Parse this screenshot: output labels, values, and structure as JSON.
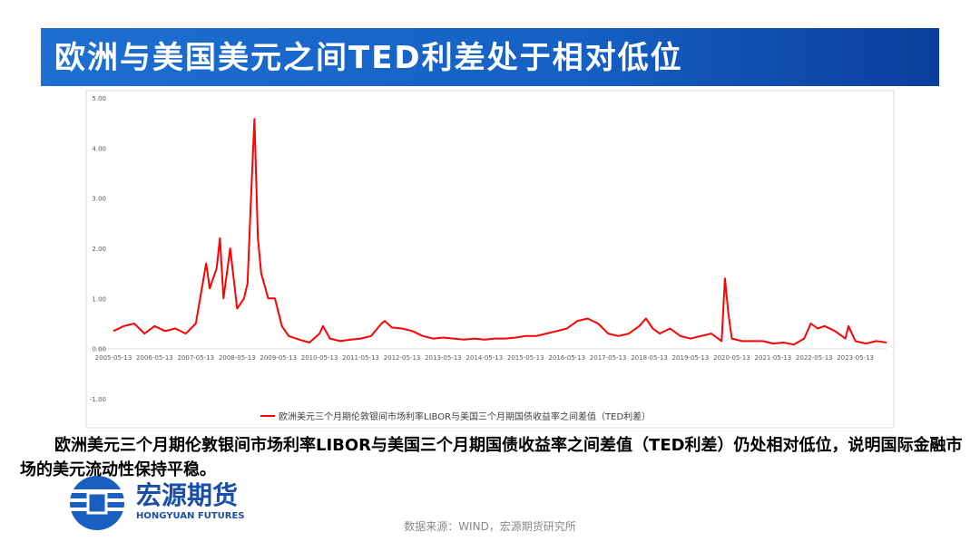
{
  "title": "欧洲与美国美元之间TED利差处于相对低位",
  "chart_data": {
    "type": "line",
    "x": [
      "2005-05-13",
      "2005-08-13",
      "2005-11-13",
      "2006-02-13",
      "2006-05-13",
      "2006-08-13",
      "2006-11-13",
      "2007-02-13",
      "2007-05-13",
      "2007-08-13",
      "2007-09-13",
      "2007-11-13",
      "2007-12-13",
      "2008-01-13",
      "2008-03-13",
      "2008-05-13",
      "2008-07-13",
      "2008-08-13",
      "2008-09-13",
      "2008-10-13",
      "2008-11-13",
      "2008-12-13",
      "2009-02-13",
      "2009-04-13",
      "2009-06-13",
      "2009-08-13",
      "2009-11-13",
      "2010-02-13",
      "2010-05-13",
      "2010-06-13",
      "2010-08-13",
      "2010-11-13",
      "2011-02-13",
      "2011-05-13",
      "2011-08-13",
      "2011-11-13",
      "2011-12-13",
      "2012-02-13",
      "2012-05-13",
      "2012-08-13",
      "2012-11-13",
      "2013-02-13",
      "2013-05-13",
      "2013-08-13",
      "2013-11-13",
      "2014-02-13",
      "2014-05-13",
      "2014-08-13",
      "2014-11-13",
      "2015-02-13",
      "2015-05-13",
      "2015-08-13",
      "2015-11-13",
      "2016-02-13",
      "2016-05-13",
      "2016-08-13",
      "2016-11-13",
      "2017-02-13",
      "2017-05-13",
      "2017-08-13",
      "2017-11-13",
      "2018-02-13",
      "2018-04-13",
      "2018-06-13",
      "2018-08-13",
      "2018-11-13",
      "2019-02-13",
      "2019-05-13",
      "2019-08-13",
      "2019-11-13",
      "2020-02-13",
      "2020-03-13",
      "2020-04-13",
      "2020-05-13",
      "2020-08-13",
      "2020-11-13",
      "2021-02-13",
      "2021-05-13",
      "2021-08-13",
      "2021-11-13",
      "2022-02-13",
      "2022-04-13",
      "2022-06-13",
      "2022-08-13",
      "2022-11-13",
      "2023-02-13",
      "2023-03-13",
      "2023-05-13",
      "2023-08-13",
      "2023-11-13",
      "2024-02-13"
    ],
    "series": [
      {
        "name": "欧洲美元三个月期伦敦银间市场利率LIBOR与美国三个月期国债收益率之间差值（TED利差）",
        "color": "#ff0000",
        "values": [
          0.35,
          0.45,
          0.5,
          0.3,
          0.45,
          0.35,
          0.4,
          0.3,
          0.5,
          1.7,
          1.2,
          1.6,
          2.2,
          1.0,
          2.0,
          0.8,
          1.0,
          1.3,
          3.0,
          4.58,
          2.2,
          1.5,
          1.0,
          1.0,
          0.45,
          0.25,
          0.18,
          0.12,
          0.3,
          0.45,
          0.2,
          0.15,
          0.18,
          0.2,
          0.25,
          0.5,
          0.55,
          0.42,
          0.4,
          0.35,
          0.25,
          0.2,
          0.22,
          0.2,
          0.18,
          0.2,
          0.18,
          0.2,
          0.2,
          0.22,
          0.25,
          0.25,
          0.3,
          0.35,
          0.4,
          0.55,
          0.6,
          0.5,
          0.3,
          0.25,
          0.3,
          0.45,
          0.6,
          0.4,
          0.3,
          0.4,
          0.25,
          0.2,
          0.25,
          0.3,
          0.15,
          1.4,
          0.7,
          0.2,
          0.15,
          0.15,
          0.15,
          0.1,
          0.12,
          0.08,
          0.2,
          0.5,
          0.4,
          0.45,
          0.35,
          0.2,
          0.45,
          0.15,
          0.1,
          0.15,
          0.12
        ]
      }
    ],
    "xlim": [
      "2005-05-13",
      "2024-02-13"
    ],
    "xticks": [
      "2005-05-13",
      "2006-05-13",
      "2007-05-13",
      "2008-05-13",
      "2009-05-13",
      "2010-05-13",
      "2011-05-13",
      "2012-05-13",
      "2013-05-13",
      "2014-05-13",
      "2015-05-13",
      "2016-05-13",
      "2017-05-13",
      "2018-05-13",
      "2019-05-13",
      "2020-05-13",
      "2021-05-13",
      "2022-05-13",
      "2023-05-13"
    ],
    "ylim": [
      -1,
      5
    ],
    "yticks": [
      {
        "value": -1,
        "label": "-1.00"
      },
      {
        "value": 0,
        "label": "0.00"
      },
      {
        "value": 1,
        "label": "1.00"
      },
      {
        "value": 2,
        "label": "2.00"
      },
      {
        "value": 3,
        "label": "3.00"
      },
      {
        "value": 4,
        "label": "4.00"
      },
      {
        "value": 5,
        "label": "5.00"
      }
    ],
    "grid": false,
    "legend": "bottom"
  },
  "body_text": "欧洲美元三个月期伦敦银间市场利率LIBOR与美国三个月期国债收益率之间差值（TED利差）仍处相对低位，说明国际金融市场的美元流动性保持平稳。",
  "logo": {
    "name": "宏源期货",
    "subtitle": "HONGYUAN FUTURES"
  },
  "source": "数据来源：WIND，宏源期货研究所"
}
